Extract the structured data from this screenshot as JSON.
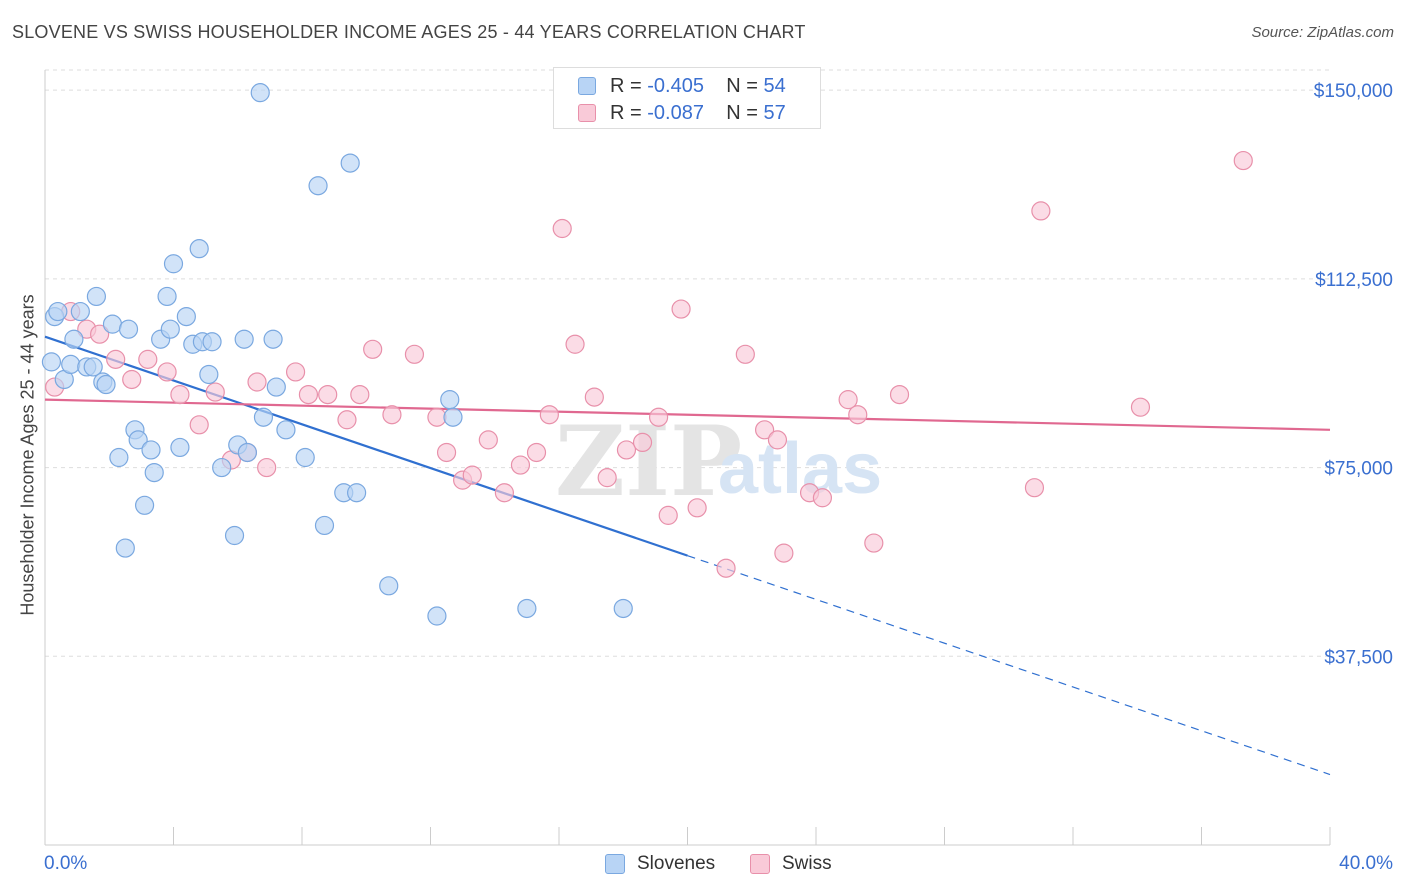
{
  "title": "SLOVENE VS SWISS HOUSEHOLDER INCOME AGES 25 - 44 YEARS CORRELATION CHART",
  "source": "Source: ZipAtlas.com",
  "watermark": {
    "zip": "ZIP",
    "atlas": "atlas"
  },
  "colors": {
    "slovenes_fill": "#b8d4f5",
    "slovenes_stroke": "#7aa8e0",
    "slovenes_line": "#3070d0",
    "swiss_fill": "#f9cad8",
    "swiss_stroke": "#e890aa",
    "swiss_line": "#e06890",
    "tick_label": "#3a6fd0",
    "grid": "#dddddd"
  },
  "legend_top": [
    {
      "r_label": "R =",
      "r_value": "-0.405",
      "n_label": "N =",
      "n_value": "54"
    },
    {
      "r_label": "R =",
      "r_value": "-0.087",
      "n_label": "N =",
      "n_value": "57"
    }
  ],
  "chart_data": {
    "type": "scatter",
    "title": "SLOVENE VS SWISS HOUSEHOLDER INCOME AGES 25 - 44 YEARS CORRELATION CHART",
    "xlabel": "",
    "ylabel": "Householder Income Ages 25 - 44 years",
    "xlim": [
      0,
      40
    ],
    "ylim": [
      0,
      154000
    ],
    "x_tick_labels": [
      "0.0%",
      "40.0%"
    ],
    "y_ticks": [
      37500,
      75000,
      112500,
      150000
    ],
    "y_tick_labels": [
      "$37,500",
      "$75,000",
      "$112,500",
      "$150,000"
    ],
    "grid": "horizontal dashed",
    "legend_placement": "bottom-center",
    "series": [
      {
        "name": "Slovenes",
        "trend": {
          "x_start": 0,
          "y_start": 101000,
          "x_solid_end": 20,
          "y_solid_end": 57500,
          "x_end": 40,
          "y_end": 14000
        },
        "points": [
          [
            0.2,
            96000
          ],
          [
            0.3,
            105000
          ],
          [
            0.4,
            106000
          ],
          [
            0.6,
            92500
          ],
          [
            0.8,
            95500
          ],
          [
            0.9,
            100500
          ],
          [
            1.1,
            106000
          ],
          [
            1.3,
            95000
          ],
          [
            1.5,
            95000
          ],
          [
            1.6,
            109000
          ],
          [
            1.8,
            92000
          ],
          [
            1.9,
            91500
          ],
          [
            2.1,
            103500
          ],
          [
            2.3,
            77000
          ],
          [
            2.5,
            59000
          ],
          [
            2.6,
            102500
          ],
          [
            2.8,
            82500
          ],
          [
            2.9,
            80500
          ],
          [
            3.1,
            67500
          ],
          [
            3.3,
            78500
          ],
          [
            3.4,
            74000
          ],
          [
            3.6,
            100500
          ],
          [
            3.8,
            109000
          ],
          [
            3.9,
            102500
          ],
          [
            4.0,
            115500
          ],
          [
            4.2,
            79000
          ],
          [
            4.4,
            105000
          ],
          [
            4.6,
            99500
          ],
          [
            4.8,
            118500
          ],
          [
            4.9,
            100000
          ],
          [
            5.1,
            93500
          ],
          [
            5.2,
            100000
          ],
          [
            5.5,
            75000
          ],
          [
            5.9,
            61500
          ],
          [
            6.0,
            79500
          ],
          [
            6.2,
            100500
          ],
          [
            6.3,
            78000
          ],
          [
            6.7,
            149500
          ],
          [
            6.8,
            85000
          ],
          [
            7.1,
            100500
          ],
          [
            7.2,
            91000
          ],
          [
            7.5,
            82500
          ],
          [
            8.1,
            77000
          ],
          [
            8.5,
            131000
          ],
          [
            8.7,
            63500
          ],
          [
            9.3,
            70000
          ],
          [
            9.5,
            135500
          ],
          [
            9.7,
            70000
          ],
          [
            10.7,
            51500
          ],
          [
            12.2,
            45500
          ],
          [
            12.6,
            88500
          ],
          [
            12.7,
            85000
          ],
          [
            15.0,
            47000
          ],
          [
            18.0,
            47000
          ]
        ]
      },
      {
        "name": "Swiss",
        "trend": {
          "x_start": 0,
          "y_start": 88500,
          "x_end": 40,
          "y_end": 82500
        },
        "points": [
          [
            0.3,
            91000
          ],
          [
            0.8,
            106000
          ],
          [
            1.3,
            102500
          ],
          [
            1.7,
            101500
          ],
          [
            2.2,
            96500
          ],
          [
            2.7,
            92500
          ],
          [
            3.2,
            96500
          ],
          [
            3.8,
            94000
          ],
          [
            4.2,
            89500
          ],
          [
            4.8,
            83500
          ],
          [
            5.3,
            90000
          ],
          [
            5.8,
            76500
          ],
          [
            6.3,
            78000
          ],
          [
            6.6,
            92000
          ],
          [
            6.9,
            75000
          ],
          [
            7.8,
            94000
          ],
          [
            8.2,
            89500
          ],
          [
            8.8,
            89500
          ],
          [
            9.4,
            84500
          ],
          [
            9.8,
            89500
          ],
          [
            10.2,
            98500
          ],
          [
            10.8,
            85500
          ],
          [
            11.5,
            97500
          ],
          [
            12.2,
            85000
          ],
          [
            12.5,
            78000
          ],
          [
            13.0,
            72500
          ],
          [
            13.3,
            73500
          ],
          [
            13.8,
            80500
          ],
          [
            14.3,
            70000
          ],
          [
            14.8,
            75500
          ],
          [
            15.3,
            78000
          ],
          [
            15.7,
            85500
          ],
          [
            16.1,
            122500
          ],
          [
            16.5,
            99500
          ],
          [
            17.1,
            89000
          ],
          [
            17.5,
            73000
          ],
          [
            18.1,
            78500
          ],
          [
            18.6,
            80000
          ],
          [
            19.1,
            85000
          ],
          [
            19.4,
            65500
          ],
          [
            19.8,
            106500
          ],
          [
            20.3,
            67000
          ],
          [
            21.2,
            55000
          ],
          [
            21.8,
            97500
          ],
          [
            22.4,
            82500
          ],
          [
            22.8,
            80500
          ],
          [
            23.0,
            58000
          ],
          [
            23.8,
            70000
          ],
          [
            24.2,
            69000
          ],
          [
            25.0,
            88500
          ],
          [
            25.3,
            85500
          ],
          [
            25.8,
            60000
          ],
          [
            26.6,
            89500
          ],
          [
            30.8,
            71000
          ],
          [
            31.0,
            126000
          ],
          [
            34.1,
            87000
          ],
          [
            37.3,
            136000
          ]
        ]
      }
    ]
  }
}
